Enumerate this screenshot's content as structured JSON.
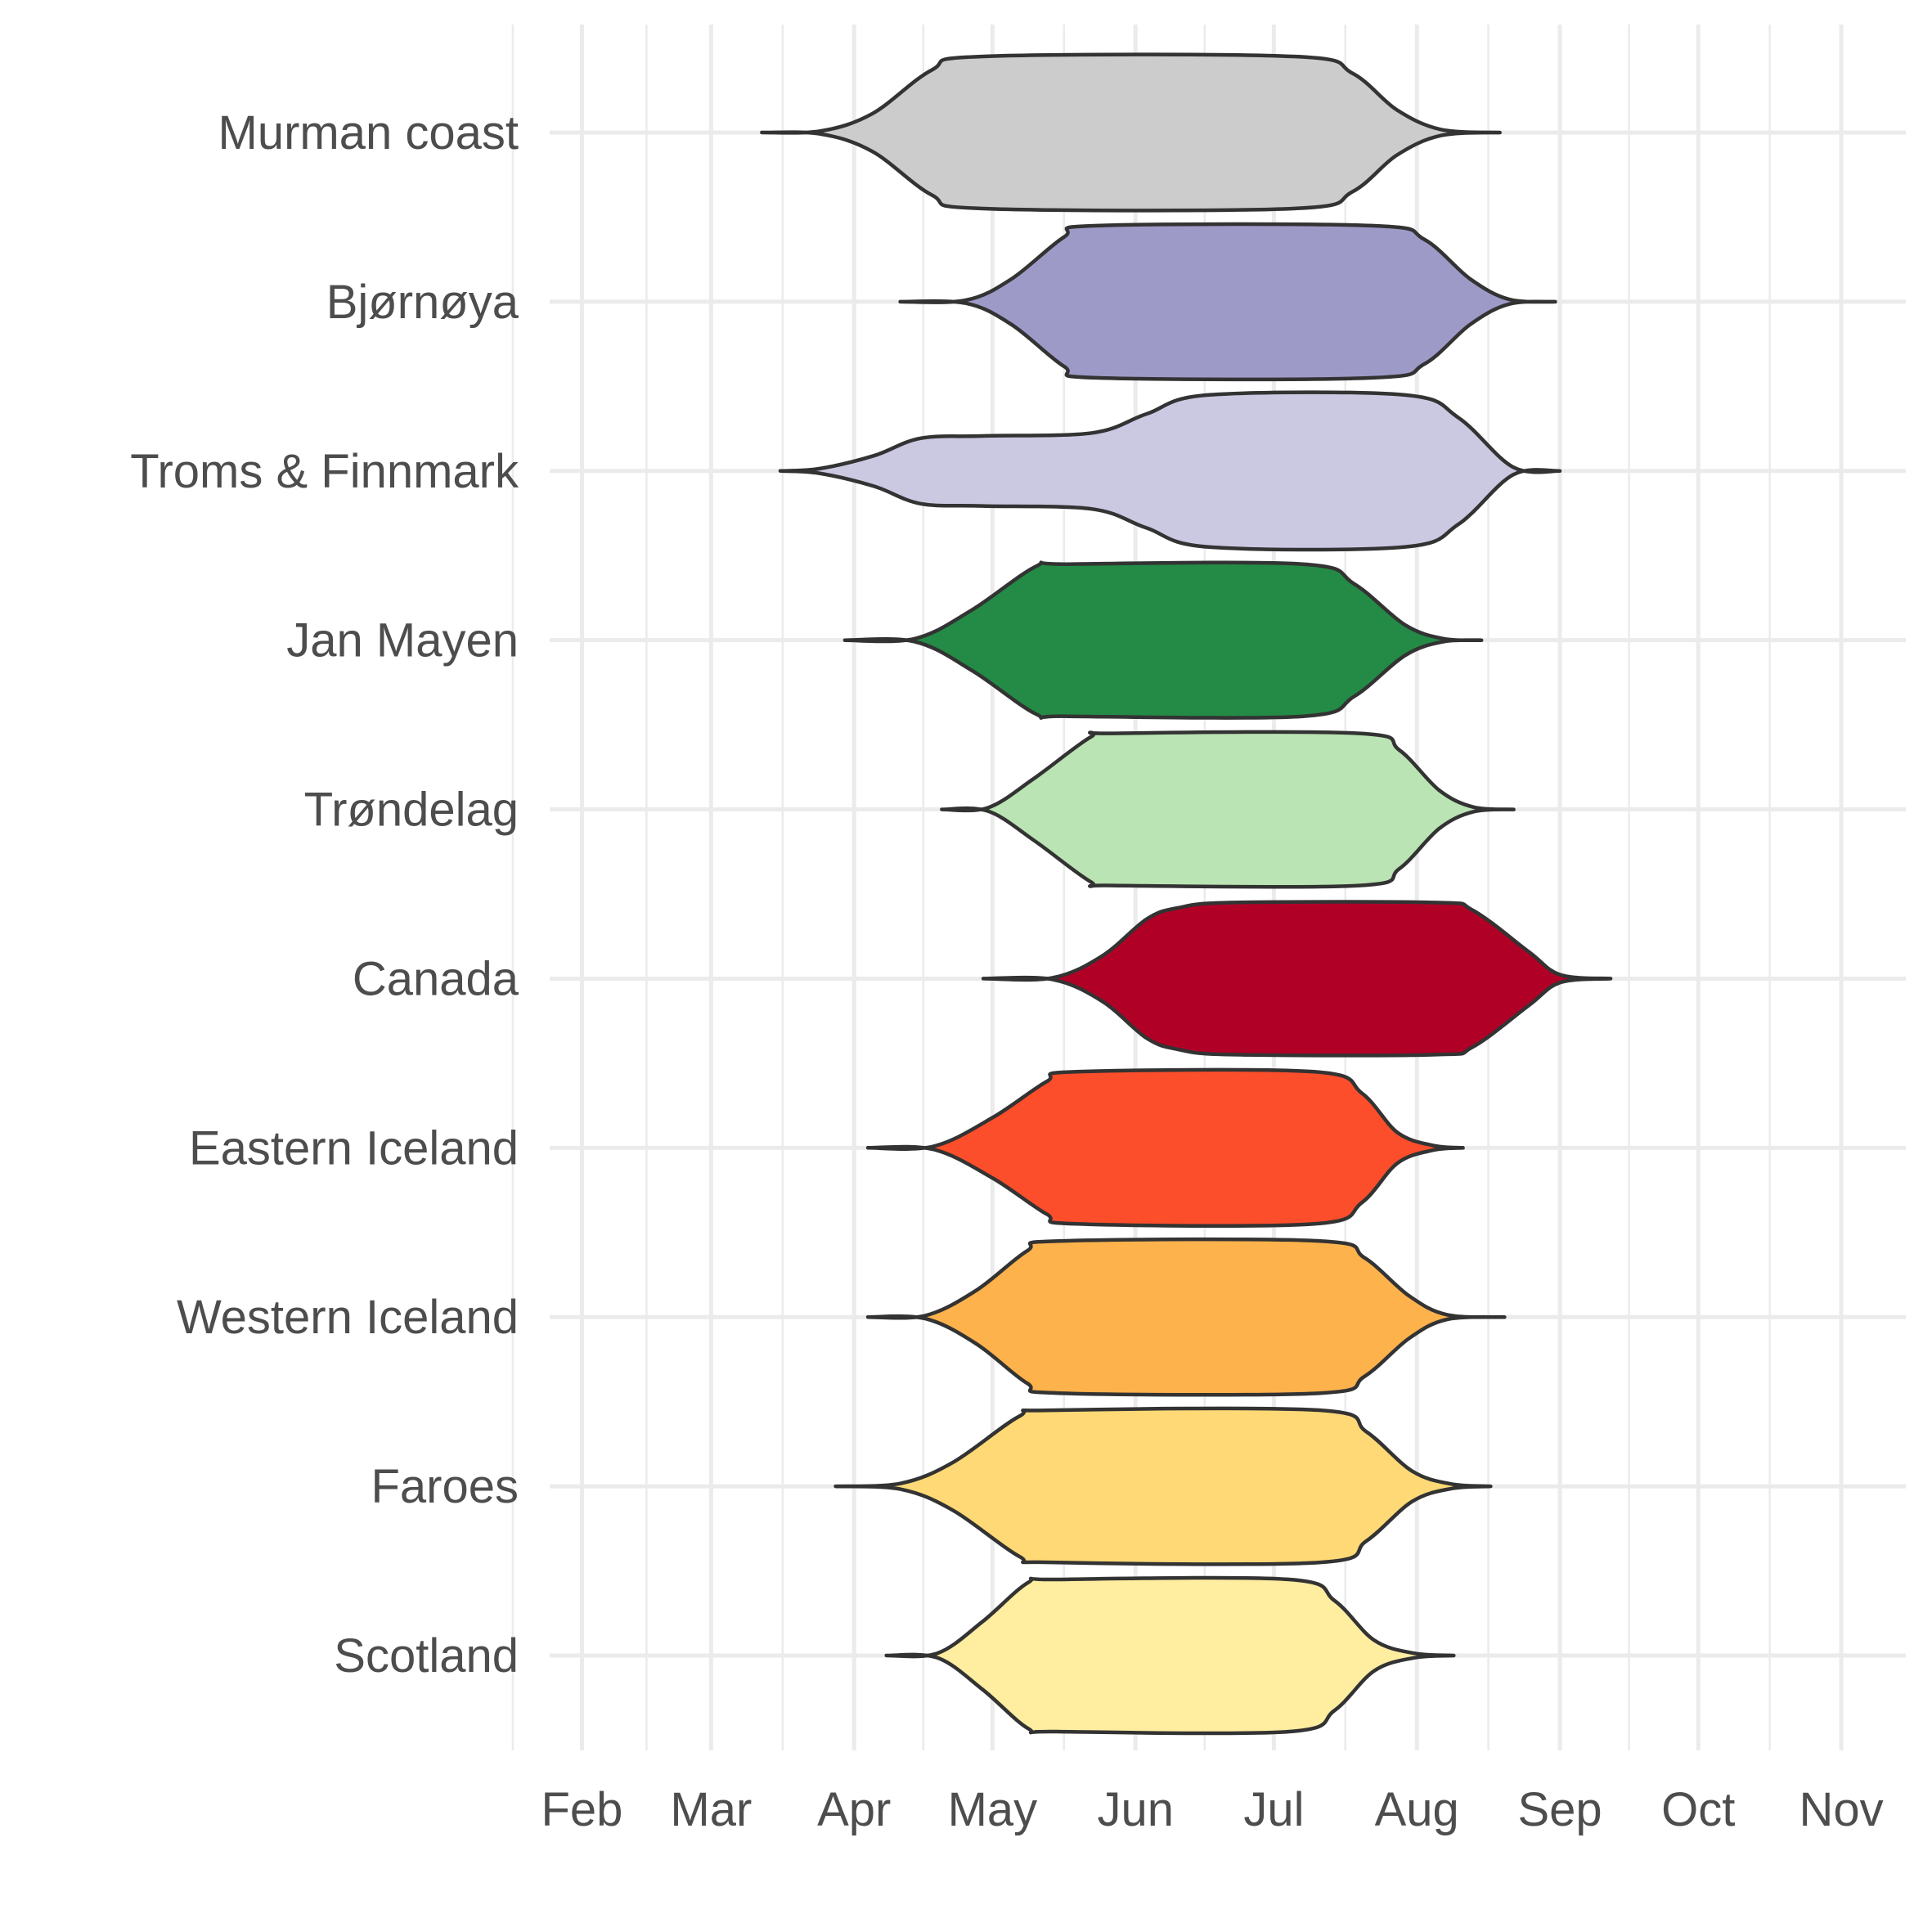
{
  "chart_data": {
    "type": "violin",
    "title": "",
    "xlabel": "",
    "ylabel": "",
    "x_ticks": [
      "Feb",
      "Mar",
      "Apr",
      "May",
      "Jun",
      "Jul",
      "Aug",
      "Sep",
      "Oct",
      "Nov"
    ],
    "xlim": [
      "Jan 25",
      "Nov 15"
    ],
    "grid": true,
    "legend": "none",
    "series": [
      {
        "name": "Murman coast",
        "color": "#cccccc",
        "start": "Mar 12",
        "end": "Aug 19",
        "profile": [
          [
            0,
            0
          ],
          [
            0.08,
            0.02
          ],
          [
            0.15,
            0.25
          ],
          [
            0.23,
            0.82
          ],
          [
            0.3,
            1
          ],
          [
            0.72,
            1
          ],
          [
            0.8,
            0.78
          ],
          [
            0.86,
            0.3
          ],
          [
            0.92,
            0.04
          ],
          [
            1,
            0
          ]
        ]
      },
      {
        "name": "Bjørnøya",
        "color": "#9e9ac8",
        "start": "Apr 11",
        "end": "Aug 31",
        "profile": [
          [
            0,
            0
          ],
          [
            0.1,
            0.02
          ],
          [
            0.17,
            0.3
          ],
          [
            0.25,
            0.85
          ],
          [
            0.3,
            1
          ],
          [
            0.72,
            1
          ],
          [
            0.8,
            0.82
          ],
          [
            0.87,
            0.3
          ],
          [
            0.93,
            0.03
          ],
          [
            1,
            0
          ]
        ]
      },
      {
        "name": "Troms & Finnmark",
        "color": "#cbc9e2",
        "start": "Mar 16",
        "end": "Sep 1",
        "profile": [
          [
            0,
            0
          ],
          [
            0.05,
            0.03
          ],
          [
            0.12,
            0.2
          ],
          [
            0.18,
            0.43
          ],
          [
            0.26,
            0.46
          ],
          [
            0.4,
            0.5
          ],
          [
            0.47,
            0.75
          ],
          [
            0.55,
            1
          ],
          [
            0.8,
            1
          ],
          [
            0.87,
            0.7
          ],
          [
            0.94,
            0.05
          ],
          [
            1,
            0
          ]
        ]
      },
      {
        "name": "Jan Mayen",
        "color": "#238b45",
        "start": "Mar 30",
        "end": "Aug 15",
        "profile": [
          [
            0,
            0
          ],
          [
            0.11,
            0.02
          ],
          [
            0.2,
            0.4
          ],
          [
            0.3,
            0.97
          ],
          [
            0.35,
            1
          ],
          [
            0.72,
            1
          ],
          [
            0.8,
            0.74
          ],
          [
            0.88,
            0.2
          ],
          [
            0.94,
            0.02
          ],
          [
            1,
            0
          ]
        ]
      },
      {
        "name": "Trøndelag",
        "color": "#bae4b3",
        "start": "Apr 20",
        "end": "Aug 22",
        "profile": [
          [
            0,
            0
          ],
          [
            0.08,
            0.02
          ],
          [
            0.16,
            0.4
          ],
          [
            0.26,
            0.95
          ],
          [
            0.3,
            1
          ],
          [
            0.73,
            1
          ],
          [
            0.8,
            0.78
          ],
          [
            0.87,
            0.25
          ],
          [
            0.93,
            0.03
          ],
          [
            1,
            0
          ]
        ]
      },
      {
        "name": "Canada",
        "color": "#b10026",
        "start": "Apr 29",
        "end": "Sep 12",
        "profile": [
          [
            0,
            0
          ],
          [
            0.11,
            0.01
          ],
          [
            0.19,
            0.3
          ],
          [
            0.26,
            0.78
          ],
          [
            0.31,
            0.93
          ],
          [
            0.4,
            1
          ],
          [
            0.72,
            1
          ],
          [
            0.78,
            0.9
          ],
          [
            0.87,
            0.35
          ],
          [
            0.92,
            0.05
          ],
          [
            1,
            0
          ]
        ]
      },
      {
        "name": "Eastern Iceland",
        "color": "#fc4e2a",
        "start": "Apr 4",
        "end": "Aug 11",
        "profile": [
          [
            0,
            0
          ],
          [
            0.11,
            0.02
          ],
          [
            0.21,
            0.4
          ],
          [
            0.3,
            0.87
          ],
          [
            0.35,
            1
          ],
          [
            0.75,
            1
          ],
          [
            0.83,
            0.72
          ],
          [
            0.89,
            0.2
          ],
          [
            0.95,
            0.03
          ],
          [
            1,
            0
          ]
        ]
      },
      {
        "name": "Western Iceland",
        "color": "#feb24c",
        "start": "Apr 4",
        "end": "Aug 20",
        "profile": [
          [
            0,
            0
          ],
          [
            0.09,
            0.02
          ],
          [
            0.17,
            0.35
          ],
          [
            0.25,
            0.87
          ],
          [
            0.3,
            1
          ],
          [
            0.71,
            1
          ],
          [
            0.78,
            0.78
          ],
          [
            0.85,
            0.28
          ],
          [
            0.91,
            0.03
          ],
          [
            1,
            0
          ]
        ]
      },
      {
        "name": "Faroes",
        "color": "#fed976",
        "start": "Mar 28",
        "end": "Aug 17",
        "profile": [
          [
            0,
            0
          ],
          [
            0.1,
            0.04
          ],
          [
            0.18,
            0.32
          ],
          [
            0.28,
            0.92
          ],
          [
            0.33,
            1
          ],
          [
            0.74,
            1
          ],
          [
            0.81,
            0.72
          ],
          [
            0.88,
            0.2
          ],
          [
            0.94,
            0.03
          ],
          [
            1,
            0
          ]
        ]
      },
      {
        "name": "Scotland",
        "color": "#ffeda0",
        "start": "Apr 8",
        "end": "Aug 9",
        "profile": [
          [
            0,
            0
          ],
          [
            0.09,
            0.03
          ],
          [
            0.17,
            0.45
          ],
          [
            0.25,
            0.96
          ],
          [
            0.3,
            1
          ],
          [
            0.71,
            1
          ],
          [
            0.79,
            0.72
          ],
          [
            0.86,
            0.2
          ],
          [
            0.93,
            0.03
          ],
          [
            1,
            0
          ]
        ]
      }
    ]
  }
}
